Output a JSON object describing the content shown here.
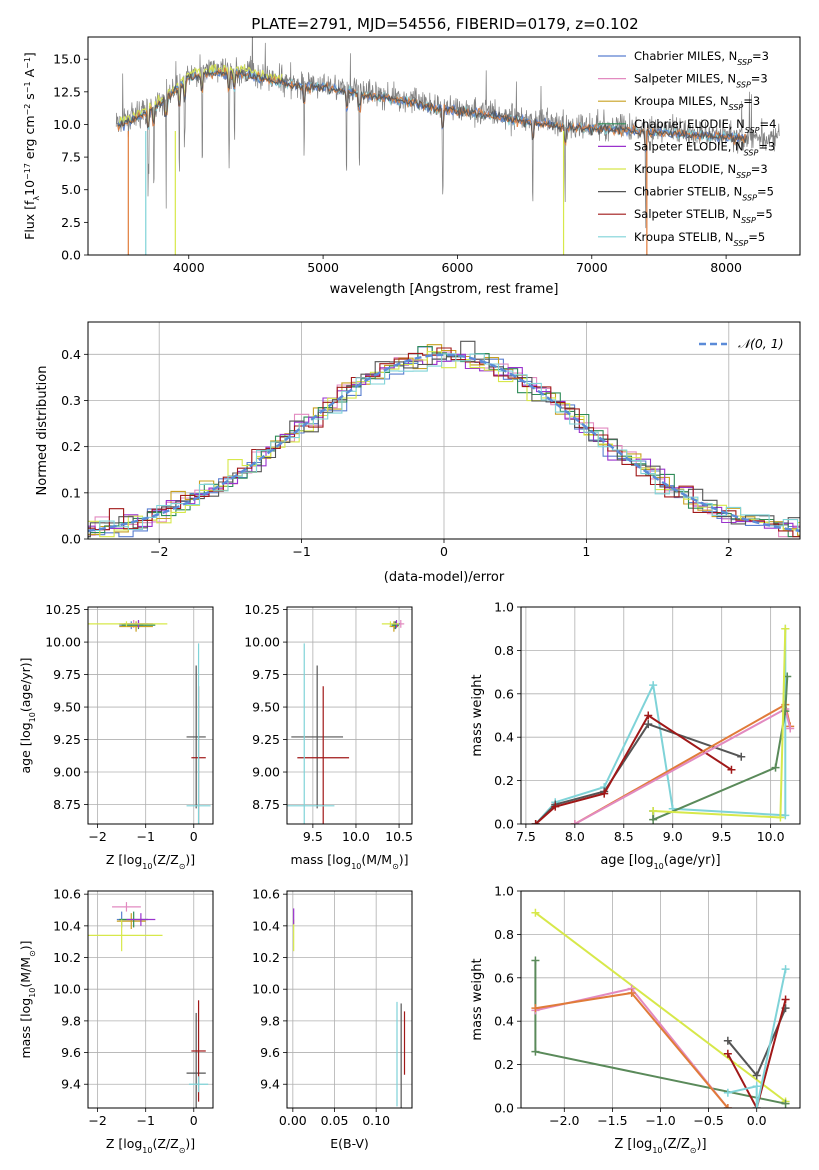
{
  "figure": {
    "title": "PLATE=2791, MJD=54556, FIBERID=0179, z=0.102"
  },
  "colors": {
    "Chabrier MILES": "#5a7fd0",
    "Salpeter MILES": "#e28ac0",
    "Kroupa MILES": "#c8a020",
    "Chabrier ELODIE": "#2e8b57",
    "Salpeter ELODIE": "#9a32cd",
    "Kroupa ELODIE": "#d7e84a",
    "Chabrier STELIB": "#555555",
    "Salpeter STELIB": "#a01818",
    "Kroupa STELIB": "#7fd3d8",
    "spectrum": "#808080",
    "gaussian": "#5b8bd8",
    "orange_model": "#e07b39",
    "green_model": "#5a8a5a"
  },
  "chart_data": [
    {
      "id": "spectrum",
      "type": "line",
      "title": "PLATE=2791, MJD=54556, FIBERID=0179, z=0.102",
      "xlabel": "wavelength [Angstrom, rest frame]",
      "ylabel_parts": [
        "Flux [f",
        "λ",
        "10",
        "−17",
        " erg cm",
        "−2",
        " s",
        "−1",
        " A",
        "−1",
        "]"
      ],
      "xlim": [
        3250,
        8550
      ],
      "ylim": [
        0,
        16.7
      ],
      "xticks": [
        "4000",
        "5000",
        "6000",
        "7000",
        "8000"
      ],
      "xtick_values": [
        4000,
        5000,
        6000,
        7000,
        8000
      ],
      "yticks": [
        "0.0",
        "2.5",
        "5.0",
        "7.5",
        "10.0",
        "12.5",
        "15.0"
      ],
      "ytick_values": [
        0,
        2.5,
        5,
        7.5,
        10,
        12.5,
        15
      ],
      "legend_position": "top-right",
      "legend": [
        {
          "base": "Chabrier MILES, N",
          "sub": "SSP",
          "tail": "=3"
        },
        {
          "base": "Salpeter MILES, N",
          "sub": "SSP",
          "tail": "=3"
        },
        {
          "base": "Kroupa MILES, N",
          "sub": "SSP",
          "tail": "=3"
        },
        {
          "base": "Chabrier ELODIE, N",
          "sub": "SSP",
          "tail": "=4"
        },
        {
          "base": "Salpeter ELODIE, N",
          "sub": "SSP",
          "tail": "=3"
        },
        {
          "base": "Kroupa ELODIE, N",
          "sub": "SSP",
          "tail": "=3"
        },
        {
          "base": "Chabrier STELIB, N",
          "sub": "SSP",
          "tail": "=5"
        },
        {
          "base": "Salpeter STELIB, N",
          "sub": "SSP",
          "tail": "=5"
        },
        {
          "base": "Kroupa STELIB, N",
          "sub": "SSP",
          "tail": "=5"
        }
      ],
      "continuum": {
        "x": [
          3450,
          3600,
          3800,
          4000,
          4200,
          4400,
          4600,
          4800,
          5000,
          5200,
          5400,
          5600,
          5800,
          6000,
          6200,
          6400,
          6600,
          6800,
          7000,
          7200,
          7400,
          7600,
          7800,
          8000,
          8200,
          8400
        ],
        "y": [
          10.0,
          10.6,
          11.8,
          13.8,
          14.2,
          14.1,
          13.6,
          13.2,
          13.0,
          12.7,
          12.3,
          12.0,
          11.5,
          11.2,
          11.0,
          10.6,
          10.3,
          10.0,
          9.9,
          9.8,
          9.6,
          9.5,
          9.4,
          9.2,
          9.1,
          9.0
        ]
      },
      "absorption_lines": [
        3700,
        3740,
        3830,
        3930,
        3970,
        4100,
        4300,
        4340,
        4860,
        5175,
        5270,
        5890,
        6560,
        6800,
        7400
      ]
    },
    {
      "id": "residuals",
      "type": "histogram",
      "xlabel": "(data-model)/error",
      "ylabel": "Normed distribution",
      "xlim": [
        -2.5,
        2.5
      ],
      "ylim": [
        0,
        0.47
      ],
      "xticks": [
        "−2",
        "−1",
        "0",
        "1",
        "2"
      ],
      "xtick_values": [
        -2,
        -1,
        0,
        1,
        2
      ],
      "yticks": [
        "0.0",
        "0.1",
        "0.2",
        "0.3",
        "0.4"
      ],
      "ytick_values": [
        0,
        0.1,
        0.2,
        0.3,
        0.4
      ],
      "legend_position": "top-right",
      "legend": [
        "𝒩(0, 1)"
      ],
      "bin_width": 0.1
    },
    {
      "id": "age_vs_Z",
      "type": "errorbar",
      "xlabel_parts": [
        "Z [log",
        "10",
        "(Z/Z",
        "⊙",
        ")]"
      ],
      "ylabel_parts": [
        "age  [log",
        "10",
        "(age/yr)]"
      ],
      "xlim": [
        -2.2,
        0.4
      ],
      "ylim": [
        8.6,
        10.27
      ],
      "xticks": [
        "−2",
        "−1",
        "0"
      ],
      "xtick_values": [
        -2,
        -1,
        0
      ],
      "yticks": [
        "8.75",
        "9.00",
        "9.25",
        "9.50",
        "9.75",
        "10.00",
        "10.25"
      ],
      "ytick_values": [
        8.75,
        9.0,
        9.25,
        9.5,
        9.75,
        10.0,
        10.25
      ],
      "points": [
        {
          "model": "Chabrier MILES",
          "x": -1.3,
          "xerr": 0.25,
          "y": 10.13,
          "yerr": 0.03
        },
        {
          "model": "Salpeter MILES",
          "x": -1.25,
          "xerr": 0.3,
          "y": 10.14,
          "yerr": 0.03
        },
        {
          "model": "Kroupa MILES",
          "x": -1.2,
          "xerr": 0.35,
          "y": 10.12,
          "yerr": 0.04
        },
        {
          "model": "Chabrier ELODIE",
          "x": -1.15,
          "xerr": 0.35,
          "y": 10.13,
          "yerr": 0.03
        },
        {
          "model": "Salpeter ELODIE",
          "x": -1.15,
          "xerr": 0.3,
          "y": 10.14,
          "yerr": 0.03
        },
        {
          "model": "Kroupa ELODIE",
          "x": -1.4,
          "xerr": 0.85,
          "y": 10.14,
          "yerr": 0.02
        },
        {
          "model": "Chabrier STELIB",
          "x": 0.05,
          "xerr": 0.2,
          "y": 9.27,
          "yerr": 0.55
        },
        {
          "model": "Salpeter STELIB",
          "x": 0.1,
          "xerr": 0.15,
          "y": 9.11,
          "yerr": 0.55
        },
        {
          "model": "Kroupa STELIB",
          "x": 0.1,
          "xerr": 0.25,
          "y": 8.74,
          "yerr": 1.25
        }
      ]
    },
    {
      "id": "age_vs_mass",
      "type": "errorbar",
      "xlabel_parts": [
        "mass [log",
        "10",
        "(M/M",
        "⊙",
        ")]"
      ],
      "ylabel_parts": [],
      "xlim": [
        9.2,
        10.65
      ],
      "ylim": [
        8.6,
        10.27
      ],
      "xticks": [
        "9.5",
        "10.0",
        "10.5"
      ],
      "xtick_values": [
        9.5,
        10.0,
        10.5
      ],
      "yticks": [
        "8.75",
        "9.00",
        "9.25",
        "9.50",
        "9.75",
        "10.00",
        "10.25"
      ],
      "ytick_values": [
        8.75,
        9.0,
        9.25,
        9.5,
        9.75,
        10.0,
        10.25
      ],
      "points": [
        {
          "model": "Chabrier MILES",
          "x": 10.45,
          "xerr": 0.04,
          "y": 10.13,
          "yerr": 0.03
        },
        {
          "model": "Salpeter MILES",
          "x": 10.52,
          "xerr": 0.04,
          "y": 10.14,
          "yerr": 0.03
        },
        {
          "model": "Kroupa MILES",
          "x": 10.44,
          "xerr": 0.05,
          "y": 10.12,
          "yerr": 0.04
        },
        {
          "model": "Chabrier ELODIE",
          "x": 10.46,
          "xerr": 0.04,
          "y": 10.13,
          "yerr": 0.03
        },
        {
          "model": "Salpeter ELODIE",
          "x": 10.47,
          "xerr": 0.04,
          "y": 10.14,
          "yerr": 0.03
        },
        {
          "model": "Kroupa ELODIE",
          "x": 10.4,
          "xerr": 0.1,
          "y": 10.14,
          "yerr": 0.02
        },
        {
          "model": "Chabrier STELIB",
          "x": 9.55,
          "xerr": 0.3,
          "y": 9.27,
          "yerr": 0.55
        },
        {
          "model": "Salpeter STELIB",
          "x": 9.62,
          "xerr": 0.3,
          "y": 9.11,
          "yerr": 0.55
        },
        {
          "model": "Kroupa STELIB",
          "x": 9.4,
          "xerr": 0.35,
          "y": 8.74,
          "yerr": 1.25
        }
      ]
    },
    {
      "id": "weight_vs_age",
      "type": "line",
      "xlabel_parts": [
        "age  [log",
        "10",
        "(age/yr)]"
      ],
      "ylabel": "mass weight",
      "xlim": [
        7.45,
        10.3
      ],
      "ylim": [
        0,
        1.0
      ],
      "xticks": [
        "7.5",
        "8.0",
        "8.5",
        "9.0",
        "9.5",
        "10.0"
      ],
      "xtick_values": [
        7.5,
        8.0,
        8.5,
        9.0,
        9.5,
        10.0
      ],
      "yticks": [
        "0.0",
        "0.2",
        "0.4",
        "0.6",
        "0.8",
        "1.0"
      ],
      "ytick_values": [
        0,
        0.2,
        0.4,
        0.6,
        0.8,
        1.0
      ],
      "series": [
        {
          "model": "Kroupa STELIB",
          "x": [
            7.6,
            7.8,
            8.3,
            8.8,
            9.0,
            10.15,
            10.15
          ],
          "y": [
            0.0,
            0.1,
            0.17,
            0.64,
            0.07,
            0.04,
            0.9
          ]
        },
        {
          "model": "Chabrier STELIB",
          "x": [
            7.6,
            7.8,
            8.3,
            8.75,
            9.7
          ],
          "y": [
            0.0,
            0.09,
            0.15,
            0.46,
            0.31
          ]
        },
        {
          "model": "Salpeter STELIB",
          "x": [
            7.6,
            7.8,
            8.3,
            8.75,
            9.6
          ],
          "y": [
            0.0,
            0.08,
            0.14,
            0.5,
            0.25
          ]
        },
        {
          "model": "Kroupa MILES",
          "x": [
            8.0,
            10.15,
            10.2
          ],
          "y": [
            0.0,
            0.55,
            0.45
          ]
        },
        {
          "model": "Salpeter MILES",
          "x": [
            8.0,
            10.15,
            10.2
          ],
          "y": [
            0.0,
            0.53,
            0.44
          ]
        },
        {
          "model": "Chabrier ELODIE",
          "x": [
            8.8,
            8.8,
            10.05,
            10.15,
            10.17
          ],
          "y": [
            0.06,
            0.02,
            0.26,
            0.52,
            0.68
          ]
        },
        {
          "model": "Kroupa ELODIE",
          "x": [
            8.8,
            10.1,
            10.15
          ],
          "y": [
            0.06,
            0.03,
            0.9
          ]
        }
      ]
    },
    {
      "id": "mass_vs_Z",
      "type": "errorbar",
      "xlabel_parts": [
        "Z [log",
        "10",
        "(Z/Z",
        "⊙",
        ")]"
      ],
      "ylabel_parts": [
        "mass [log",
        "10",
        "(M/M",
        "⊙",
        ")]"
      ],
      "xlim": [
        -2.2,
        0.4
      ],
      "ylim": [
        9.25,
        10.62
      ],
      "xticks": [
        "−2",
        "−1",
        "0"
      ],
      "xtick_values": [
        -2,
        -1,
        0
      ],
      "yticks": [
        "9.4",
        "9.6",
        "9.8",
        "10.0",
        "10.2",
        "10.4",
        "10.6"
      ],
      "ytick_values": [
        9.4,
        9.6,
        9.8,
        10.0,
        10.2,
        10.4,
        10.6
      ],
      "points": [
        {
          "model": "Chabrier MILES",
          "x": -1.5,
          "xerr": 0.1,
          "y": 10.44,
          "yerr": 0.05
        },
        {
          "model": "Salpeter MILES",
          "x": -1.4,
          "xerr": 0.3,
          "y": 10.52,
          "yerr": 0.03
        },
        {
          "model": "Kroupa MILES",
          "x": -1.3,
          "xerr": 0.3,
          "y": 10.43,
          "yerr": 0.05
        },
        {
          "model": "Chabrier ELODIE",
          "x": -1.25,
          "xerr": 0.3,
          "y": 10.44,
          "yerr": 0.05
        },
        {
          "model": "Salpeter ELODIE",
          "x": -1.1,
          "xerr": 0.3,
          "y": 10.44,
          "yerr": 0.04
        },
        {
          "model": "Kroupa ELODIE",
          "x": -1.5,
          "xerr": 0.85,
          "y": 10.34,
          "yerr": 0.1
        },
        {
          "model": "Chabrier STELIB",
          "x": 0.05,
          "xerr": 0.2,
          "y": 9.47,
          "yerr": 0.38
        },
        {
          "model": "Salpeter STELIB",
          "x": 0.1,
          "xerr": 0.15,
          "y": 9.61,
          "yerr": 0.32
        },
        {
          "model": "Kroupa STELIB",
          "x": 0.1,
          "xerr": 0.2,
          "y": 9.4,
          "yerr": 0.05
        }
      ]
    },
    {
      "id": "mass_vs_EBV",
      "type": "errorbar",
      "xlabel": "E(B-V)",
      "ylabel_parts": [],
      "xlim": [
        -0.007,
        0.143
      ],
      "ylim": [
        9.25,
        10.62
      ],
      "xticks": [
        "0.00",
        "0.05",
        "0.10"
      ],
      "xtick_values": [
        0,
        0.05,
        0.1
      ],
      "yticks": [
        "9.4",
        "9.6",
        "9.8",
        "10.0",
        "10.2",
        "10.4",
        "10.6"
      ],
      "ytick_values": [
        9.4,
        9.6,
        9.8,
        10.0,
        10.2,
        10.4,
        10.6
      ],
      "points": [
        {
          "model": "Kroupa ELODIE",
          "x": 0.001,
          "xerr": 0.0,
          "y": 10.34,
          "yerr": 0.1
        },
        {
          "model": "Salpeter ELODIE",
          "x": 0.001,
          "xerr": 0.0,
          "y": 10.46,
          "yerr": 0.05
        },
        {
          "model": "Kroupa STELIB",
          "x": 0.125,
          "xerr": 0.0,
          "y": 9.59,
          "yerr": 0.33
        },
        {
          "model": "Chabrier STELIB",
          "x": 0.13,
          "xerr": 0.0,
          "y": 9.56,
          "yerr": 0.35
        },
        {
          "model": "Salpeter STELIB",
          "x": 0.134,
          "xerr": 0.0,
          "y": 9.66,
          "yerr": 0.2
        }
      ]
    },
    {
      "id": "weight_vs_Z",
      "type": "line",
      "xlabel_parts": [
        "Z [log",
        "10",
        "(Z/Z",
        "⊙",
        ")]"
      ],
      "ylabel": "mass weight",
      "xlim": [
        -2.45,
        0.45
      ],
      "ylim": [
        0,
        1.0
      ],
      "xticks": [
        "−2.0",
        "−1.5",
        "−1.0",
        "−0.5",
        "0.0"
      ],
      "xtick_values": [
        -2.0,
        -1.5,
        -1.0,
        -0.5,
        0.0
      ],
      "yticks": [
        "0.0",
        "0.2",
        "0.4",
        "0.6",
        "0.8",
        "1.0"
      ],
      "ytick_values": [
        0,
        0.2,
        0.4,
        0.6,
        0.8,
        1.0
      ],
      "series": [
        {
          "model": "Kroupa ELODIE",
          "x": [
            -2.3,
            0.3
          ],
          "y": [
            0.9,
            0.03
          ]
        },
        {
          "model": "Chabrier ELODIE",
          "x": [
            -2.3,
            -2.3,
            0.3
          ],
          "y": [
            0.68,
            0.26,
            0.02
          ]
        },
        {
          "model": "Salpeter MILES",
          "x": [
            -2.3,
            -1.3,
            -0.3
          ],
          "y": [
            0.45,
            0.55,
            0.0
          ]
        },
        {
          "model": "Kroupa MILES",
          "x": [
            -2.3,
            -1.3,
            -0.3
          ],
          "y": [
            0.46,
            0.53,
            0.0
          ]
        },
        {
          "model": "Chabrier STELIB",
          "x": [
            -0.3,
            0.0,
            0.3
          ],
          "y": [
            0.31,
            0.15,
            0.46
          ]
        },
        {
          "model": "Salpeter STELIB",
          "x": [
            -0.3,
            0.0,
            0.3
          ],
          "y": [
            0.25,
            0.0,
            0.5
          ]
        },
        {
          "model": "Kroupa STELIB",
          "x": [
            -0.3,
            0.0,
            0.0,
            0.3
          ],
          "y": [
            0.07,
            0.1,
            0.0,
            0.64
          ]
        }
      ]
    }
  ]
}
